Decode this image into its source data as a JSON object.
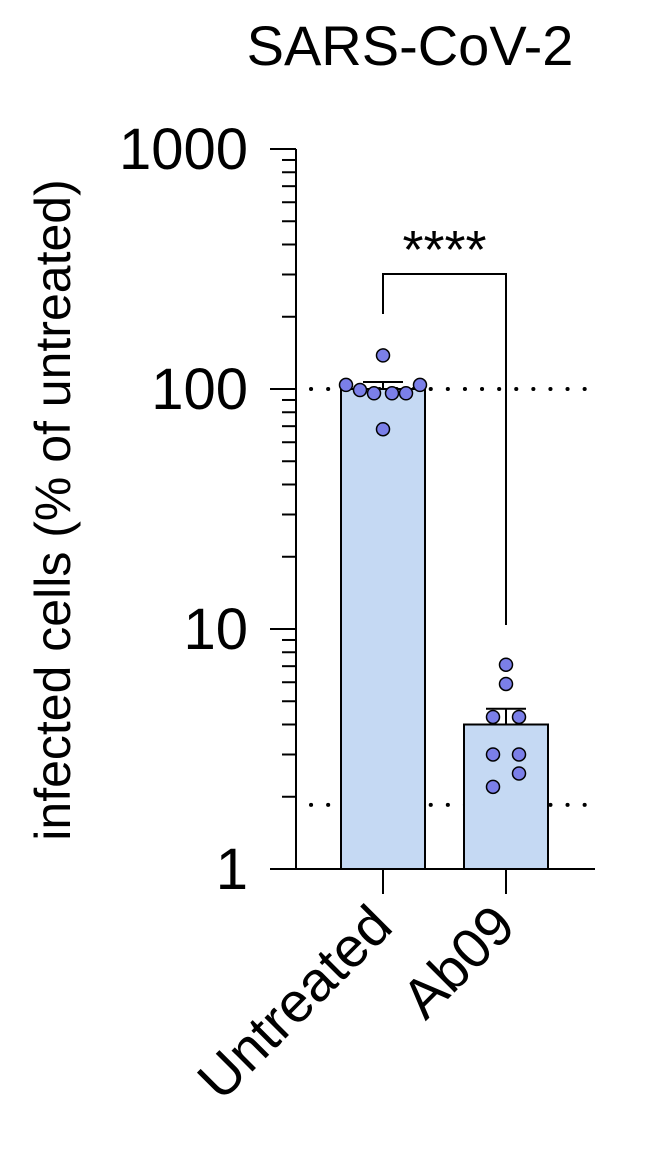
{
  "chart_data": {
    "type": "bar",
    "title": "SARS-CoV-2",
    "ylabel": "infected cells (% of untreated)",
    "xlabel": "",
    "yscale": "log",
    "ylim": [
      1,
      1000
    ],
    "ytick_labels": [
      "1",
      "10",
      "100",
      "1000"
    ],
    "categories": [
      "Untreated",
      "Ab09"
    ],
    "values": [
      100,
      4.0
    ],
    "error": [
      7,
      0.65
    ],
    "points": [
      [
        104,
        99,
        96,
        96,
        96,
        104,
        138,
        68
      ],
      [
        7.1,
        5.9,
        4.3,
        4.3,
        3.0,
        3.0,
        2.5,
        2.2
      ]
    ],
    "reference_lines": [
      100,
      1.85
    ],
    "significance": {
      "label": "****",
      "between": [
        "Untreated",
        "Ab09"
      ]
    },
    "colors": {
      "bar_fill": "#c5d9f3",
      "point_fill": "#7b7fe8",
      "stroke": "#000000"
    },
    "grid": false,
    "legend": "none"
  }
}
